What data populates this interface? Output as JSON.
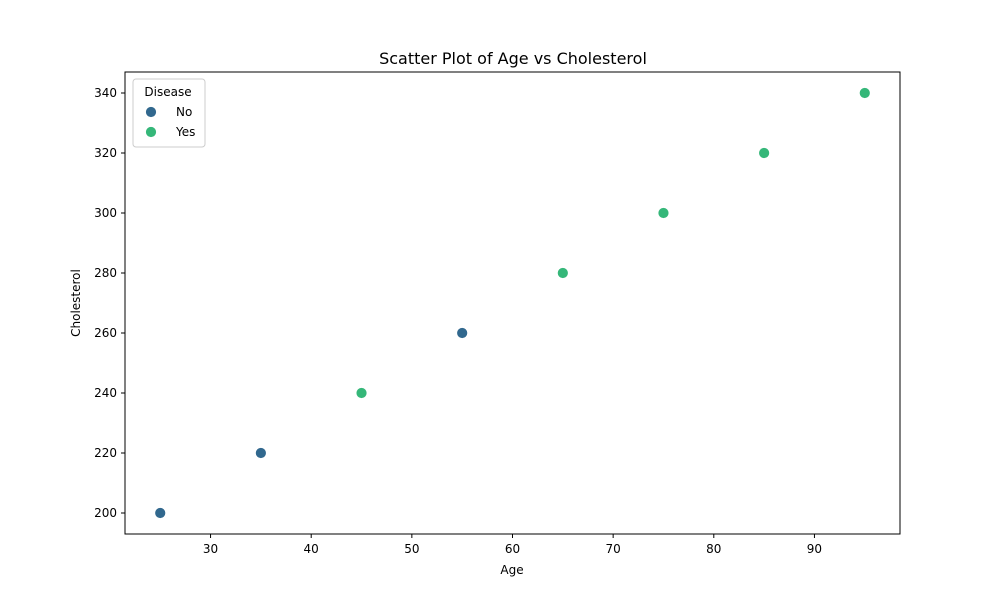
{
  "chart_data": {
    "type": "scatter",
    "title": "Scatter Plot of Age vs Cholesterol",
    "xlabel": "Age",
    "ylabel": "Cholesterol",
    "xlim": [
      21.5,
      98.5
    ],
    "ylim": [
      193,
      347
    ],
    "x_ticks": [
      30,
      40,
      50,
      60,
      70,
      80,
      90
    ],
    "y_ticks": [
      200,
      220,
      240,
      260,
      280,
      300,
      320,
      340
    ],
    "grid": false,
    "legend": {
      "title": "Disease",
      "placement": "top-left"
    },
    "series": [
      {
        "name": "No",
        "color": "#31688e",
        "points": [
          {
            "x": 25,
            "y": 200
          },
          {
            "x": 35,
            "y": 220
          },
          {
            "x": 55,
            "y": 260
          }
        ]
      },
      {
        "name": "Yes",
        "color": "#35b779",
        "points": [
          {
            "x": 45,
            "y": 240
          },
          {
            "x": 65,
            "y": 280
          },
          {
            "x": 75,
            "y": 300
          },
          {
            "x": 85,
            "y": 320
          },
          {
            "x": 95,
            "y": 340
          }
        ]
      }
    ]
  }
}
